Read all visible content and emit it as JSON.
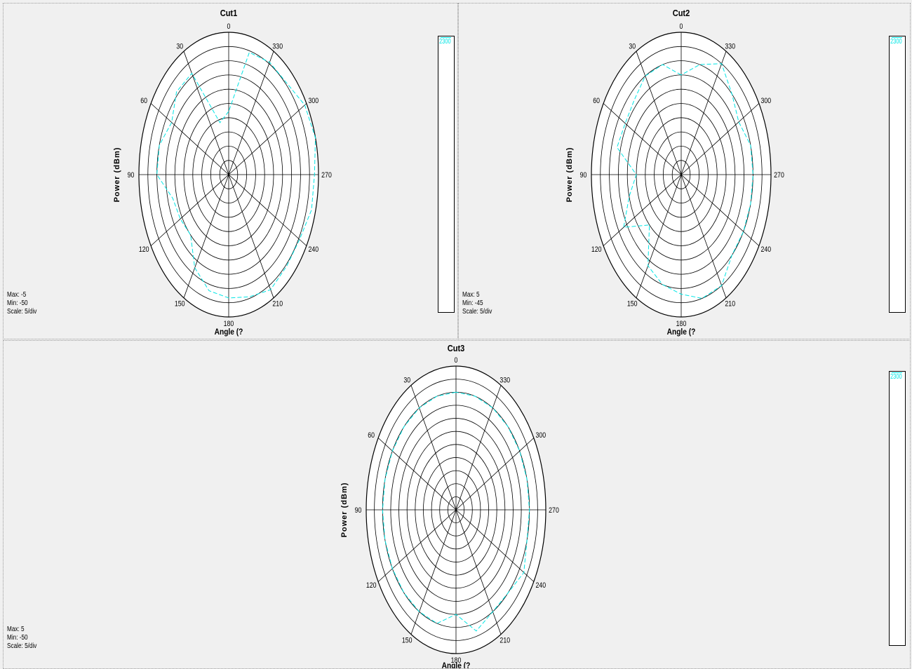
{
  "chart_data": [
    {
      "type": "polar",
      "title": "Cut1",
      "xlabel": "Angle (?",
      "ylabel": "Power  (dBm)",
      "angle_labels": [
        "0",
        "30",
        "60",
        "90",
        "120",
        "150",
        "180",
        "210",
        "240",
        "270",
        "300",
        "330"
      ],
      "rlim": [
        -50,
        -5
      ],
      "rings": 10,
      "stats": {
        "max": "Max: -5",
        "min": "Min: -50",
        "scale": "Scale: 5/div"
      },
      "series": [
        {
          "name": "2300",
          "color": "#00e5e5",
          "angles": [
            0,
            15,
            30,
            45,
            60,
            75,
            90,
            105,
            120,
            135,
            150,
            165,
            180,
            195,
            210,
            225,
            240,
            255,
            270,
            285,
            300,
            315,
            330,
            345
          ],
          "values": [
            -30,
            -33,
            -13,
            -13,
            -17,
            -14,
            -14,
            -21,
            -22,
            -23,
            -16,
            -12,
            -11,
            -10,
            -8,
            -9,
            -9,
            -7,
            -7,
            -5,
            -6,
            -9,
            -9,
            -10
          ]
        }
      ]
    },
    {
      "type": "polar",
      "title": "Cut2",
      "xlabel": "Angle (?",
      "ylabel": "Power  (dBm)",
      "angle_labels": [
        "0",
        "30",
        "60",
        "90",
        "120",
        "150",
        "180",
        "210",
        "240",
        "270",
        "300",
        "330"
      ],
      "rlim": [
        -45,
        5
      ],
      "rings": 10,
      "stats": {
        "max": "Max: 5",
        "min": "Min: -45",
        "scale": "Scale: 5/div"
      },
      "series": [
        {
          "name": "2300",
          "color": "#00e5e5",
          "angles": [
            0,
            15,
            30,
            45,
            60,
            75,
            90,
            105,
            120,
            135,
            150,
            165,
            180,
            195,
            210,
            225,
            240,
            255,
            270,
            285,
            300,
            315,
            330,
            345
          ],
          "values": [
            -10,
            -5,
            -5,
            -8,
            -9,
            -8,
            -20,
            -15,
            -8,
            -20,
            -8,
            -5,
            -3,
            0,
            0,
            -5,
            -5,
            -5,
            -5,
            -5,
            -8,
            -5,
            0,
            -5
          ]
        }
      ]
    },
    {
      "type": "polar",
      "title": "Cut3",
      "xlabel": "Angle (?",
      "ylabel": "Power  (dBm)",
      "angle_labels": [
        "0",
        "30",
        "60",
        "90",
        "120",
        "150",
        "180",
        "210",
        "240",
        "270",
        "300",
        "330"
      ],
      "rlim": [
        -50,
        5
      ],
      "rings": 11,
      "stats": {
        "max": "Max: 5",
        "min": "Min: -50",
        "scale": "Scale: 5/div"
      },
      "series": [
        {
          "name": "2300",
          "color": "#00e5e5",
          "angles": [
            0,
            15,
            30,
            45,
            60,
            75,
            90,
            105,
            120,
            135,
            150,
            165,
            180,
            195,
            210,
            225,
            240,
            255,
            270,
            285,
            300,
            315,
            330,
            345
          ],
          "values": [
            -5,
            -5,
            -5,
            -5,
            -5,
            -5,
            -5,
            -5,
            -5,
            -5,
            -5,
            -5,
            -10,
            -2,
            -5,
            -5,
            -2,
            -5,
            -5,
            -5,
            -5,
            -5,
            -5,
            -5
          ]
        }
      ]
    }
  ]
}
